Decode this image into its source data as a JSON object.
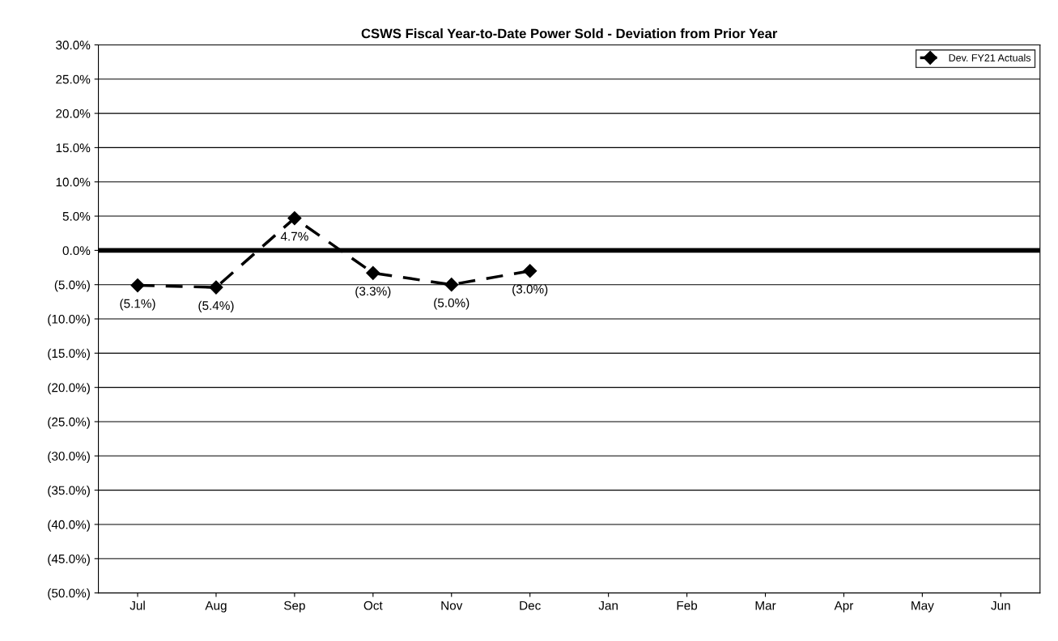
{
  "chart_data": {
    "type": "line",
    "title": "CSWS Fiscal Year-to-Date Power Sold - Deviation from Prior Year",
    "categories": [
      "Jul",
      "Aug",
      "Sep",
      "Oct",
      "Nov",
      "Dec",
      "Jan",
      "Feb",
      "Mar",
      "Apr",
      "May",
      "Jun"
    ],
    "series": [
      {
        "name": "Dev. FY21 Actuals",
        "color": "#000000",
        "values": [
          -5.1,
          -5.4,
          4.7,
          -3.3,
          -5.0,
          -3.0,
          null,
          null,
          null,
          null,
          null,
          null
        ],
        "value_labels": [
          "(5.1%)",
          "(5.4%)",
          "4.7%",
          "(3.3%)",
          "(5.0%)",
          "(3.0%)",
          null,
          null,
          null,
          null,
          null,
          null
        ]
      }
    ],
    "ylim": [
      -50,
      30
    ],
    "yticks": [
      {
        "value": -50,
        "label": "(50.0%)"
      },
      {
        "value": -45,
        "label": "(45.0%)"
      },
      {
        "value": -40,
        "label": "(40.0%)"
      },
      {
        "value": -35,
        "label": "(35.0%)"
      },
      {
        "value": -30,
        "label": "(30.0%)"
      },
      {
        "value": -25,
        "label": "(25.0%)"
      },
      {
        "value": -20,
        "label": "(20.0%)"
      },
      {
        "value": -15,
        "label": "(15.0%)"
      },
      {
        "value": -10,
        "label": "(10.0%)"
      },
      {
        "value": -5,
        "label": "(5.0%)"
      },
      {
        "value": 0,
        "label": "0.0%"
      },
      {
        "value": 5,
        "label": "5.0%"
      },
      {
        "value": 10,
        "label": "10.0%"
      },
      {
        "value": 15,
        "label": "15.0%"
      },
      {
        "value": 20,
        "label": "20.0%"
      },
      {
        "value": 25,
        "label": "25.0%"
      },
      {
        "value": 30,
        "label": "30.0%"
      }
    ],
    "ref_lines": [
      {
        "axis": "y",
        "value": 0,
        "color": "#000000",
        "line_style": "solid"
      }
    ],
    "grid": "y",
    "legend": "top right",
    "marker": "diamond",
    "line_style": "dashed"
  }
}
